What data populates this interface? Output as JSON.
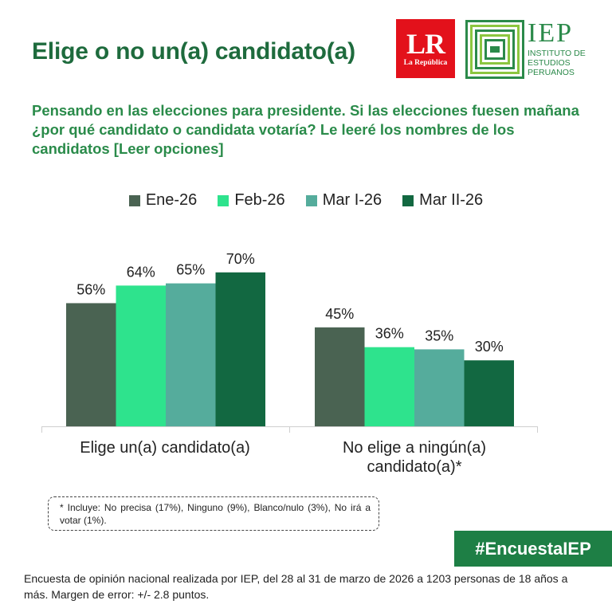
{
  "header": {
    "title": "Elige o no un(a) candidato(a)",
    "lr_logo": {
      "letters": "LR",
      "name": "La República",
      "color": "#e3111b"
    },
    "iep_logo": {
      "acronym": "IEP",
      "full_name_lines": [
        "INSTITUTO DE",
        "ESTUDIOS",
        "PERUANOS"
      ],
      "color": "#2b8a4a"
    }
  },
  "question": "Pensando en las elecciones para presidente. Si las elecciones fuesen mañana ¿por qué candidato o candidata votaría? Le leeré los nombres de los candidatos [Leer opciones]",
  "chart_data": {
    "type": "bar",
    "categories": [
      "Elige un(a) candidato(a)",
      "No elige a ningún(a) candidato(a)*"
    ],
    "series": [
      {
        "name": "Ene-26",
        "values": [
          56,
          45
        ],
        "color": "#4a6352"
      },
      {
        "name": "Feb-26",
        "values": [
          64,
          36
        ],
        "color": "#2ee38d"
      },
      {
        "name": "Mar I-26",
        "values": [
          65,
          35
        ],
        "color": "#55ac9c"
      },
      {
        "name": "Mar II-26",
        "values": [
          70,
          30
        ],
        "color": "#126841"
      }
    ],
    "value_suffix": "%",
    "ylim": [
      0,
      100
    ],
    "grid": false,
    "legend_position": "top-center"
  },
  "footnote": "* Incluye: No precisa (17%), Ninguno (9%), Blanco/nulo (3%), No irá a votar (1%).",
  "hashtag": "#EncuestaIEP",
  "source": "Encuesta de opinión nacional realizada por IEP, del 28 al 31 de marzo de 2026 a 1203 personas de 18 años a más. Margen de error: +/- 2.8 puntos."
}
